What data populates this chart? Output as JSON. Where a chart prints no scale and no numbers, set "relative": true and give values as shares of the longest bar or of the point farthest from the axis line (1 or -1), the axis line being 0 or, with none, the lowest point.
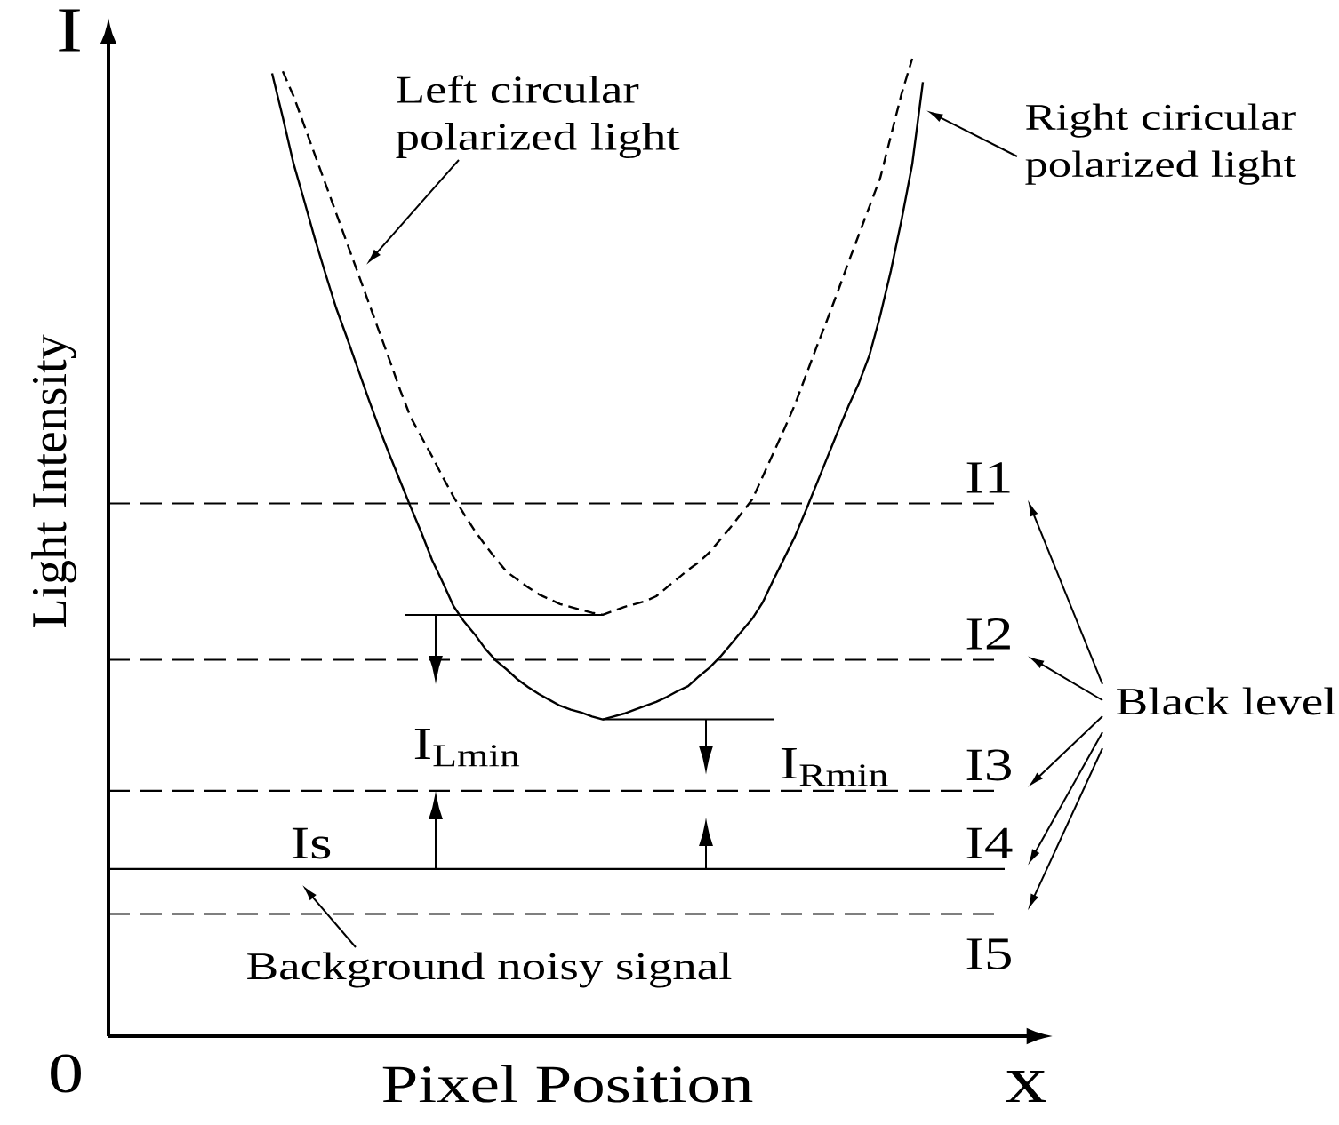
{
  "chart_data": {
    "type": "line",
    "relative": true,
    "xlabel": "Pixel Position",
    "ylabel": "Light Intensity",
    "categories": [
      null,
      null,
      null,
      null,
      null,
      null,
      null,
      null,
      null,
      null,
      null,
      null,
      null,
      null,
      null,
      null,
      null,
      null,
      null,
      null,
      null,
      null,
      null,
      null,
      null,
      null,
      null,
      null,
      null,
      null,
      null,
      null,
      null,
      null,
      null,
      null,
      null,
      null,
      null,
      null,
      null,
      null,
      null,
      null,
      null,
      null,
      null,
      null,
      null,
      null,
      null,
      null,
      null,
      null,
      null,
      null,
      null,
      null,
      null,
      null,
      null,
      null
    ],
    "series": [
      {
        "name": "Left circular polarized light",
        "color": "#000000",
        "line_style": "dashed",
        "values": [
          null,
          0.987,
          0.962,
          0.932,
          0.902,
          0.872,
          0.842,
          0.812,
          0.782,
          0.752,
          0.722,
          0.692,
          0.661,
          0.633,
          0.613,
          0.593,
          0.572,
          0.552,
          0.534,
          0.517,
          0.502,
          0.488,
          0.475,
          0.467,
          0.459,
          0.452,
          0.447,
          0.442,
          0.439,
          0.436,
          0.433,
          0.431,
          0.435,
          0.439,
          0.442,
          0.445,
          0.45,
          0.459,
          0.468,
          0.477,
          0.485,
          0.495,
          0.508,
          0.521,
          0.535,
          0.549,
          0.573,
          0.597,
          0.621,
          0.646,
          0.675,
          0.704,
          0.732,
          0.761,
          0.791,
          0.82,
          0.849,
          0.878,
          0.921,
          0.964,
          1.0,
          null
        ]
      },
      {
        "name": "Right ciricular polarized light",
        "color": "#000000",
        "line_style": "solid",
        "values": [
          0.985,
          0.94,
          0.893,
          0.855,
          0.816,
          0.78,
          0.745,
          0.715,
          0.684,
          0.653,
          0.623,
          0.595,
          0.568,
          0.541,
          0.515,
          0.487,
          0.464,
          0.44,
          0.424,
          0.411,
          0.396,
          0.384,
          0.375,
          0.365,
          0.357,
          0.35,
          0.344,
          0.338,
          0.334,
          0.331,
          0.327,
          0.324,
          0.327,
          0.33,
          0.334,
          0.338,
          0.342,
          0.347,
          0.353,
          0.358,
          0.368,
          0.377,
          0.388,
          0.401,
          0.414,
          0.427,
          0.444,
          0.467,
          0.489,
          0.511,
          0.537,
          0.564,
          0.591,
          0.618,
          0.644,
          0.668,
          0.697,
          0.737,
          0.783,
          0.835,
          0.892,
          0.976
        ]
      }
    ],
    "ref_lines": [
      {
        "axis": "y",
        "value": 0.545,
        "label": "I1",
        "color": "#000000",
        "line_style": "dashed"
      },
      {
        "axis": "y",
        "value": 0.385,
        "label": "I2",
        "color": "#000000",
        "line_style": "dashed"
      },
      {
        "axis": "y",
        "value": 0.251,
        "label": "I3",
        "color": "#000000",
        "line_style": "dashed"
      },
      {
        "axis": "y",
        "value": 0.171,
        "label": "I4",
        "color": "#000000",
        "line_style": "solid"
      },
      {
        "axis": "y",
        "value": 0.125,
        "label": "I5",
        "color": "#000000",
        "line_style": "dashed"
      }
    ],
    "annotations": [
      "I",
      "0",
      "x",
      {
        "text": "Is",
        "y": 0.171
      },
      {
        "text": "Background noisy signal",
        "y": 0.171
      },
      "Black level",
      "I$_{Lmin}$",
      "I$_{Rmin}$"
    ]
  }
}
